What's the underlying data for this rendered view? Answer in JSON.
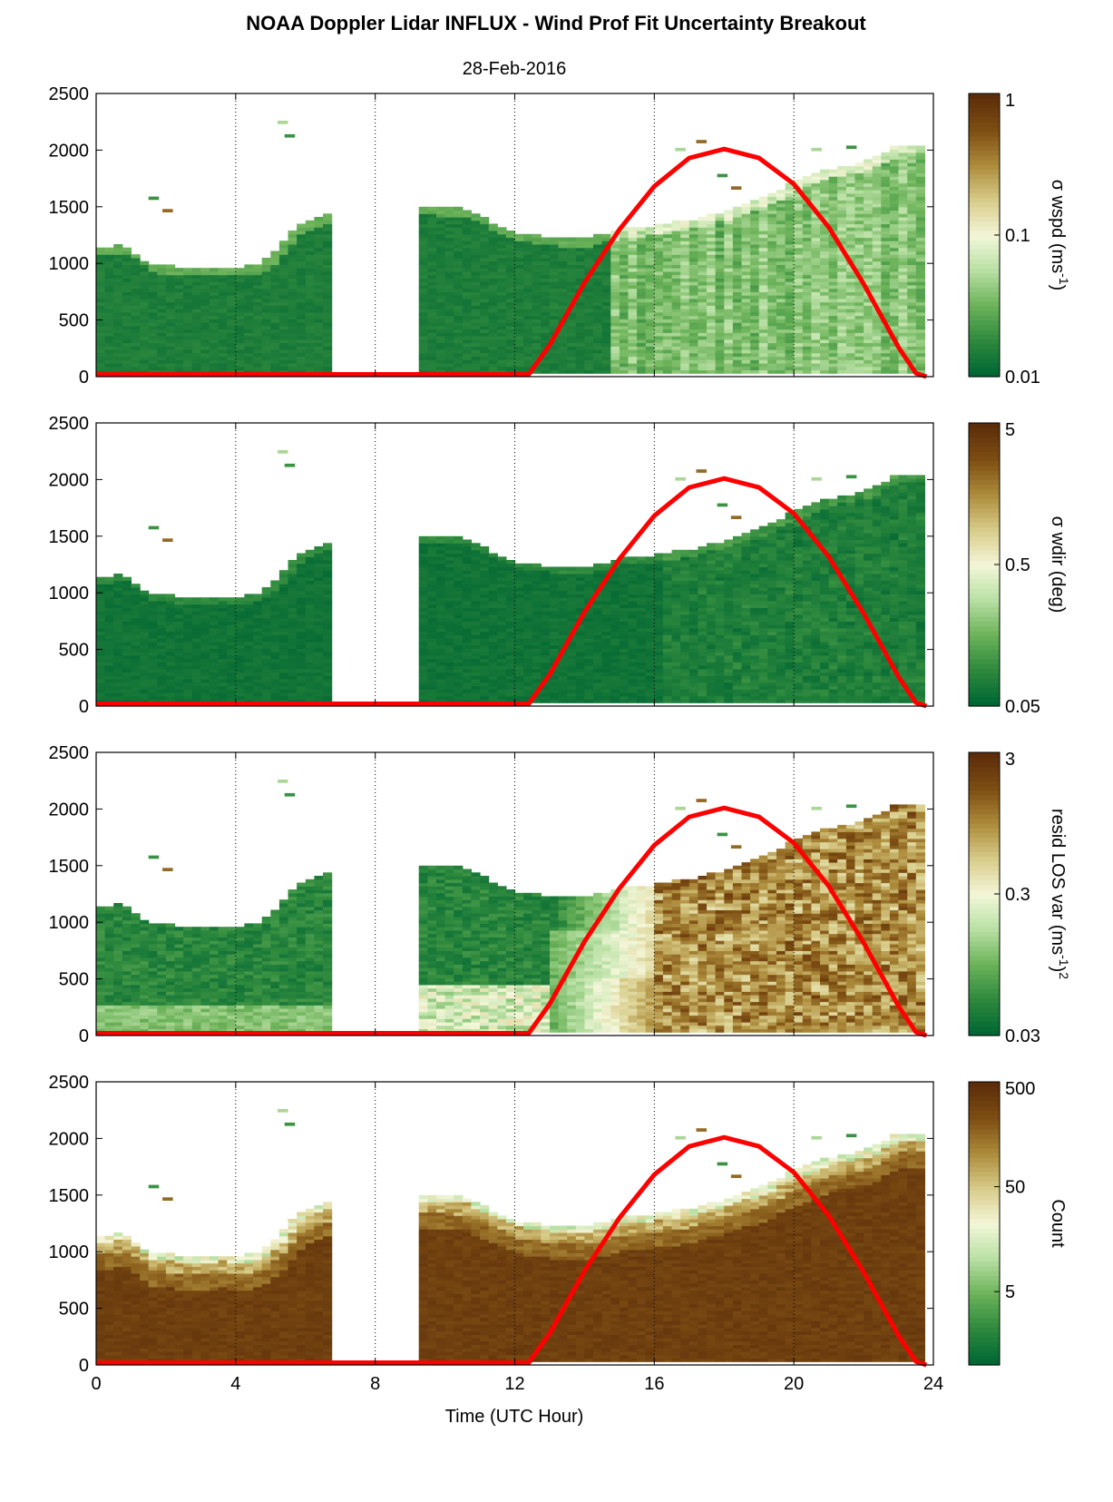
{
  "chart_data": [
    {
      "type": "heatmap",
      "title": "NOAA Doppler Lidar INFLUX - Wind Prof Fit Uncertainty Breakout",
      "subtitle": "28-Feb-2016",
      "xlabel": "",
      "ylabel": "",
      "xlim": [
        0,
        24
      ],
      "ylim": [
        0,
        2500
      ],
      "xticks": [
        0,
        4,
        8,
        12,
        16,
        20,
        24
      ],
      "yticks": [
        0,
        500,
        1000,
        1500,
        2000,
        2500
      ],
      "grid": "dotted vertical lines at x = 4, 8, 12, 16, 20",
      "colorbar": {
        "label": "σ wspd (ms-1)",
        "label_main": "σ wspd (ms",
        "label_sup": "-1",
        "label_end": ")",
        "scale": "log",
        "ticks": [
          "1",
          "0.1",
          "0.01"
        ],
        "range": [
          0.01,
          1
        ]
      },
      "data_gap_hours": [
        6.7,
        9.1
      ],
      "dominant_level": "0.01–0.03 below ~1500 m; lighter green (≈0.05–0.1) after 16 UTC",
      "overlay_curve": {
        "color": "#ff0000",
        "points": [
          [
            0,
            20
          ],
          [
            12.4,
            20
          ],
          [
            13,
            280
          ],
          [
            14,
            830
          ],
          [
            15,
            1300
          ],
          [
            16,
            1680
          ],
          [
            17,
            1930
          ],
          [
            18,
            2010
          ],
          [
            19,
            1930
          ],
          [
            20,
            1700
          ],
          [
            21,
            1320
          ],
          [
            22,
            820
          ],
          [
            23,
            260
          ],
          [
            23.5,
            30
          ],
          [
            23.8,
            0
          ]
        ]
      }
    },
    {
      "type": "heatmap",
      "title": "",
      "xlim": [
        0,
        24
      ],
      "ylim": [
        0,
        2500
      ],
      "xticks": [
        0,
        4,
        8,
        12,
        16,
        20,
        24
      ],
      "yticks": [
        0,
        500,
        1000,
        1500,
        2000,
        2500
      ],
      "colorbar": {
        "label": "σ wdir (deg)",
        "label_main": "σ wdir (deg)",
        "label_sup": "",
        "label_end": "",
        "scale": "log",
        "ticks": [
          "5",
          "0.5",
          "0.05"
        ],
        "range": [
          0.05,
          5
        ]
      },
      "dominant_level": "≈0.05–0.1 (dark green) throughout",
      "overlay_curve": {
        "color": "#ff0000",
        "same_as_panel": 1
      }
    },
    {
      "type": "heatmap",
      "title": "",
      "xlim": [
        0,
        24
      ],
      "ylim": [
        0,
        2500
      ],
      "xticks": [
        0,
        4,
        8,
        12,
        16,
        20,
        24
      ],
      "yticks": [
        0,
        500,
        1000,
        1500,
        2000,
        2500
      ],
      "colorbar": {
        "label": "resid LOS var (ms-1)2",
        "label_main": "resid LOS var (ms",
        "label_sup": "-1",
        "label_end": ")",
        "label_sup2": "2",
        "scale": "log",
        "ticks": [
          "3",
          "0.3",
          "0.03"
        ],
        "range": [
          0.03,
          3
        ]
      },
      "dominant_level": "0.03–0.1 before 14 UTC; 0.5–3 (brown) after 16 UTC",
      "overlay_curve": {
        "color": "#ff0000",
        "same_as_panel": 1
      }
    },
    {
      "type": "heatmap",
      "title": "",
      "xlabel": "Time (UTC Hour)",
      "xlim": [
        0,
        24
      ],
      "ylim": [
        0,
        2500
      ],
      "xticks": [
        0,
        4,
        8,
        12,
        16,
        20,
        24
      ],
      "yticks": [
        0,
        500,
        1000,
        1500,
        2000,
        2500
      ],
      "colorbar": {
        "label": "Count",
        "label_main": "Count",
        "label_sup": "",
        "label_end": "",
        "scale": "log",
        "ticks": [
          "500",
          "50",
          "5"
        ],
        "range": [
          1,
          500
        ]
      },
      "dominant_level": "≈500 (dark brown) in the lower layers",
      "overlay_curve": {
        "color": "#ff0000",
        "same_as_panel": 1
      }
    }
  ],
  "colors": {
    "colormap": [
      "#006633",
      "#2f8a3e",
      "#6db35a",
      "#b9e0a5",
      "#f3f6d8",
      "#d8cc8a",
      "#ad8c3c",
      "#7e4f13",
      "#5c2d0a"
    ],
    "overlay": "#ff0000"
  }
}
